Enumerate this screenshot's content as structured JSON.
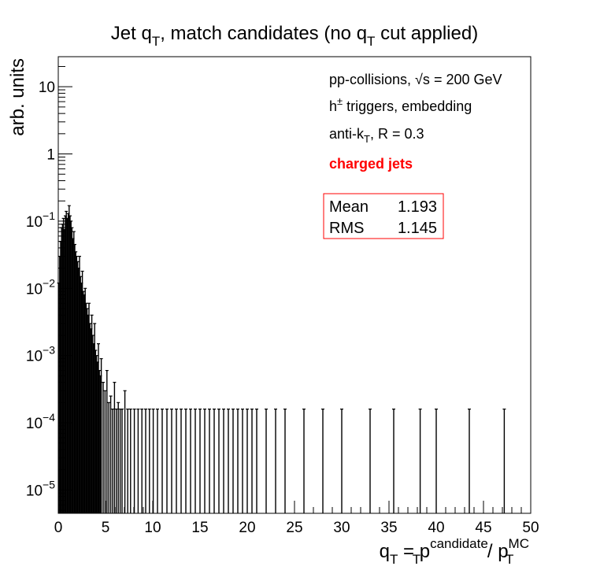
{
  "chart_data": {
    "type": "histogram",
    "title": "Jet q_T, match candidates (no q_T cut applied)",
    "title_parts": {
      "a": "Jet q",
      "sub1": "T",
      "b": ", match candidates (no q",
      "sub2": "T",
      "c": " cut applied)"
    },
    "xlabel": "q_T = p_T^candidate / p_T^MC",
    "xlabel_parts": {
      "q": "q",
      "q_sub": "T",
      "eq": " = p",
      "p1_sup": "candidate",
      "p1_sub": "T",
      "slash": " / p",
      "p2_sup": "MC",
      "p2_sub": "T"
    },
    "ylabel": "arb. units",
    "xlim": [
      0,
      50
    ],
    "ylim": [
      4.5e-06,
      28
    ],
    "y_scale": "log",
    "x_ticks": [
      "0",
      "5",
      "10",
      "15",
      "20",
      "25",
      "30",
      "35",
      "40",
      "45",
      "50"
    ],
    "y_ticks": [
      {
        "value": 1e-05,
        "base": "10",
        "exp": "−5"
      },
      {
        "value": 0.0001,
        "base": "10",
        "exp": "−4"
      },
      {
        "value": 0.001,
        "base": "10",
        "exp": "−3"
      },
      {
        "value": 0.01,
        "base": "10",
        "exp": "−2"
      },
      {
        "value": 0.1,
        "base": "10",
        "exp": "−1"
      },
      {
        "value": 1,
        "base": "1",
        "exp": ""
      },
      {
        "value": 10,
        "base": "10",
        "exp": ""
      }
    ],
    "legend": {
      "line1": "pp-collisions, ",
      "line1_sqrt": "√s",
      "line1_end": " = 200 GeV",
      "line2_h": "h",
      "line2_sup": "±",
      "line2_end": " triggers, embedding",
      "line3_a": "anti-k",
      "line3_sub": "T",
      "line3_end": ", R = 0.3",
      "line4": "charged jets"
    },
    "stats": {
      "mean_label": "Mean",
      "mean_value": "1.193",
      "rms_label": "RMS",
      "rms_value": "1.145"
    },
    "colors": {
      "histogram": "#000000",
      "highlight": "#ff0000",
      "stats_border": "#ff0000"
    },
    "series": [
      {
        "points": [
          [
            0.05,
            0.012
          ],
          [
            0.15,
            0.03
          ],
          [
            0.25,
            0.05
          ],
          [
            0.35,
            0.08
          ],
          [
            0.45,
            0.09
          ],
          [
            0.55,
            0.11
          ],
          [
            0.65,
            0.075
          ],
          [
            0.75,
            0.12
          ],
          [
            0.85,
            0.14
          ],
          [
            0.95,
            0.11
          ],
          [
            1.05,
            0.13
          ],
          [
            1.15,
            0.17
          ],
          [
            1.25,
            0.12
          ],
          [
            1.35,
            0.1
          ],
          [
            1.45,
            0.08
          ],
          [
            1.55,
            0.055
          ],
          [
            1.65,
            0.07
          ],
          [
            1.75,
            0.045
          ],
          [
            1.85,
            0.035
          ],
          [
            1.95,
            0.03
          ],
          [
            2.05,
            0.025
          ],
          [
            2.15,
            0.02
          ],
          [
            2.25,
            0.03
          ],
          [
            2.35,
            0.015
          ],
          [
            2.45,
            0.012
          ],
          [
            2.55,
            0.018
          ],
          [
            2.65,
            0.009
          ],
          [
            2.75,
            0.008
          ],
          [
            2.85,
            0.01
          ],
          [
            2.95,
            0.006
          ],
          [
            3.05,
            0.005
          ],
          [
            3.15,
            0.004
          ],
          [
            3.25,
            0.006
          ],
          [
            3.35,
            0.003
          ],
          [
            3.45,
            0.0025
          ],
          [
            3.55,
            0.004
          ],
          [
            3.65,
            0.002
          ],
          [
            3.75,
            0.0015
          ],
          [
            3.85,
            0.003
          ],
          [
            3.95,
            0.0012
          ],
          [
            4.05,
            0.001
          ],
          [
            4.15,
            0.0008
          ],
          [
            4.25,
            0.0015
          ],
          [
            4.35,
            0.0006
          ],
          [
            4.45,
            0.0005
          ],
          [
            4.55,
            0.0009
          ],
          [
            4.75,
            0.0004
          ],
          [
            4.95,
            0.0003
          ],
          [
            5.15,
            0.0006
          ],
          [
            5.35,
            0.0002
          ],
          [
            5.55,
            0.00025
          ],
          [
            5.75,
            0.00016
          ],
          [
            5.95,
            0.0004
          ],
          [
            6.15,
            0.00016
          ],
          [
            6.35,
            0.0002
          ],
          [
            6.55,
            0.00016
          ],
          [
            6.75,
            0.00016
          ],
          [
            7.05,
            0.0003
          ],
          [
            7.35,
            0.00016
          ],
          [
            7.65,
            0.00016
          ],
          [
            8.05,
            0.00016
          ],
          [
            8.45,
            0.00016
          ],
          [
            8.85,
            0.00016
          ],
          [
            9.25,
            0.00016
          ],
          [
            9.65,
            0.00016
          ],
          [
            10.05,
            0.00016
          ],
          [
            10.5,
            0.00016
          ],
          [
            11.0,
            0.00016
          ],
          [
            11.5,
            0.00016
          ],
          [
            12.0,
            0.00016
          ],
          [
            12.5,
            0.00016
          ],
          [
            13.0,
            0.00016
          ],
          [
            13.5,
            0.00016
          ],
          [
            14.0,
            0.00016
          ],
          [
            14.5,
            0.00016
          ],
          [
            15.0,
            0.00016
          ],
          [
            15.5,
            0.00016
          ],
          [
            16.0,
            0.00016
          ],
          [
            16.5,
            0.00016
          ],
          [
            17.0,
            0.00016
          ],
          [
            17.5,
            0.00016
          ],
          [
            18.0,
            0.00016
          ],
          [
            18.5,
            0.00016
          ],
          [
            19.0,
            0.00016
          ],
          [
            19.5,
            0.00016
          ],
          [
            20.0,
            0.00016
          ],
          [
            20.5,
            0.00016
          ],
          [
            21.0,
            0.00016
          ],
          [
            22.0,
            0.00016
          ],
          [
            23.0,
            0.00016
          ],
          [
            24.0,
            0.00016
          ],
          [
            26.0,
            0.00016
          ],
          [
            28.0,
            0.00016
          ],
          [
            30.0,
            0.00016
          ],
          [
            33.0,
            0.00016
          ],
          [
            35.5,
            0.00016
          ],
          [
            38.3,
            0.00016
          ],
          [
            40.0,
            0.00016
          ],
          [
            43.5,
            0.00016
          ],
          [
            47.2,
            0.00016
          ]
        ]
      }
    ]
  }
}
